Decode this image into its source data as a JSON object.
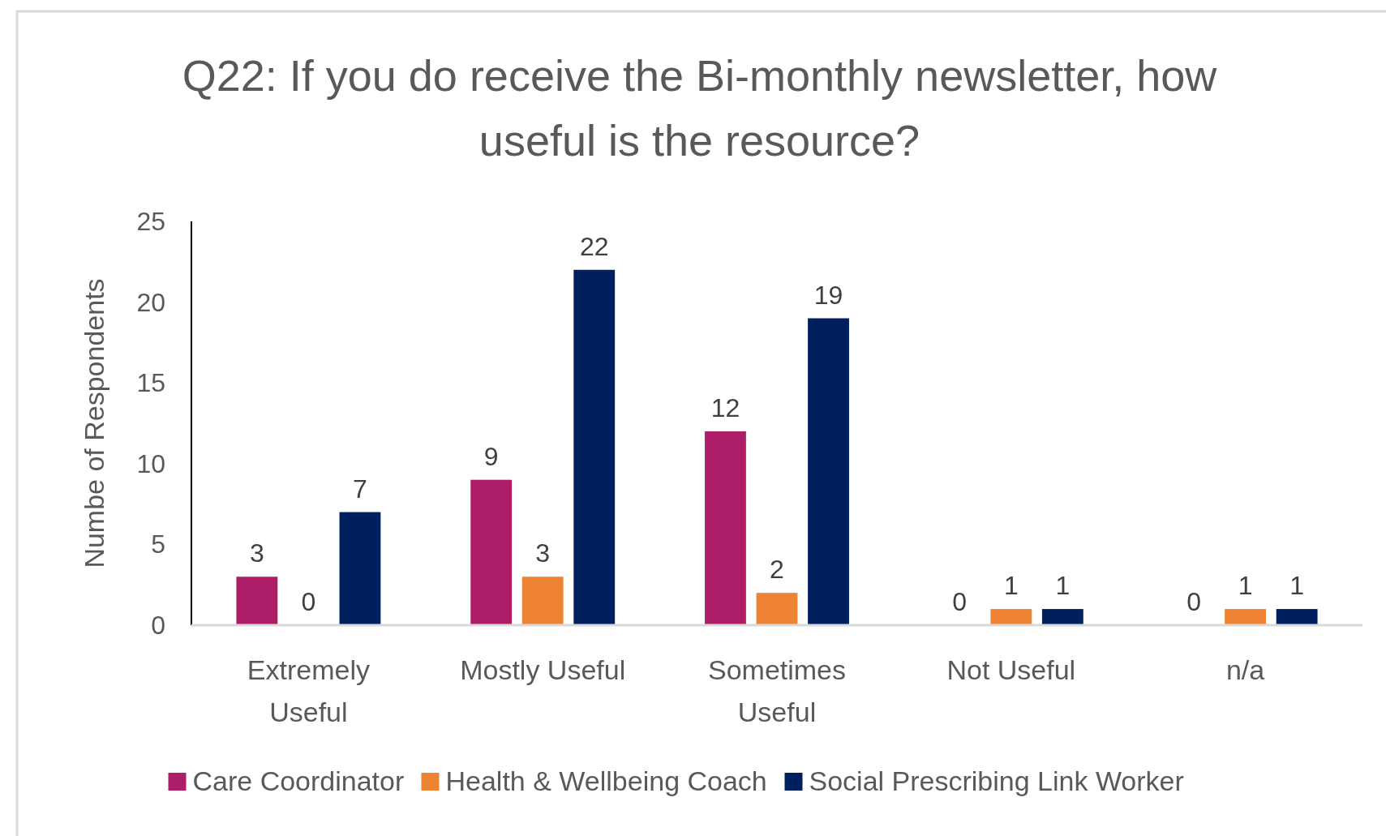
{
  "chart_data": {
    "type": "bar",
    "title": "Q22: If you do receive the Bi-monthly newsletter, how useful is the resource?",
    "ylabel": "Numbe of Respondents",
    "categories": [
      "Extremely Useful",
      "Mostly Useful",
      "Sometimes Useful",
      "Not Useful",
      "n/a"
    ],
    "series": [
      {
        "name": "Care Coordinator",
        "color": "#ae1e68",
        "values": [
          3,
          9,
          12,
          0,
          0
        ]
      },
      {
        "name": "Health & Wellbeing Coach",
        "color": "#ee8433",
        "values": [
          0,
          3,
          2,
          1,
          1
        ]
      },
      {
        "name": "Social Prescribing Link Worker",
        "color": "#001f5f",
        "values": [
          7,
          22,
          19,
          1,
          1
        ]
      }
    ],
    "ylim": [
      0,
      25
    ],
    "yticks": [
      0,
      5,
      10,
      15,
      20,
      25
    ],
    "data_labels": true,
    "grid": false,
    "legend": "bottom"
  }
}
